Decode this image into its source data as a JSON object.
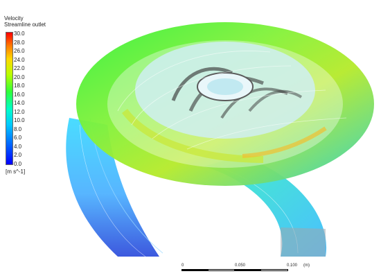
{
  "legend": {
    "title_line1": "Velocity",
    "title_line2": "Streamline outlet",
    "ticks": [
      "30.0",
      "28.0",
      "26.0",
      "24.0",
      "22.0",
      "20.0",
      "18.0",
      "16.0",
      "14.0",
      "12.0",
      "10.0",
      "8.0",
      "6.0",
      "4.0",
      "2.0",
      "0.0"
    ],
    "unit": "[m s^-1]"
  },
  "scale_bar": {
    "label_start": "0",
    "label_mid": "0.050",
    "label_end": "0.100",
    "label_unit": "(m)"
  },
  "colors": {
    "background": "#ffffff",
    "max_velocity": "#ff0000",
    "mid_velocity": "#2eff3a",
    "low_velocity": "#0000ff"
  },
  "icons": [
    "color-legend-bar",
    "scale-bar"
  ]
}
